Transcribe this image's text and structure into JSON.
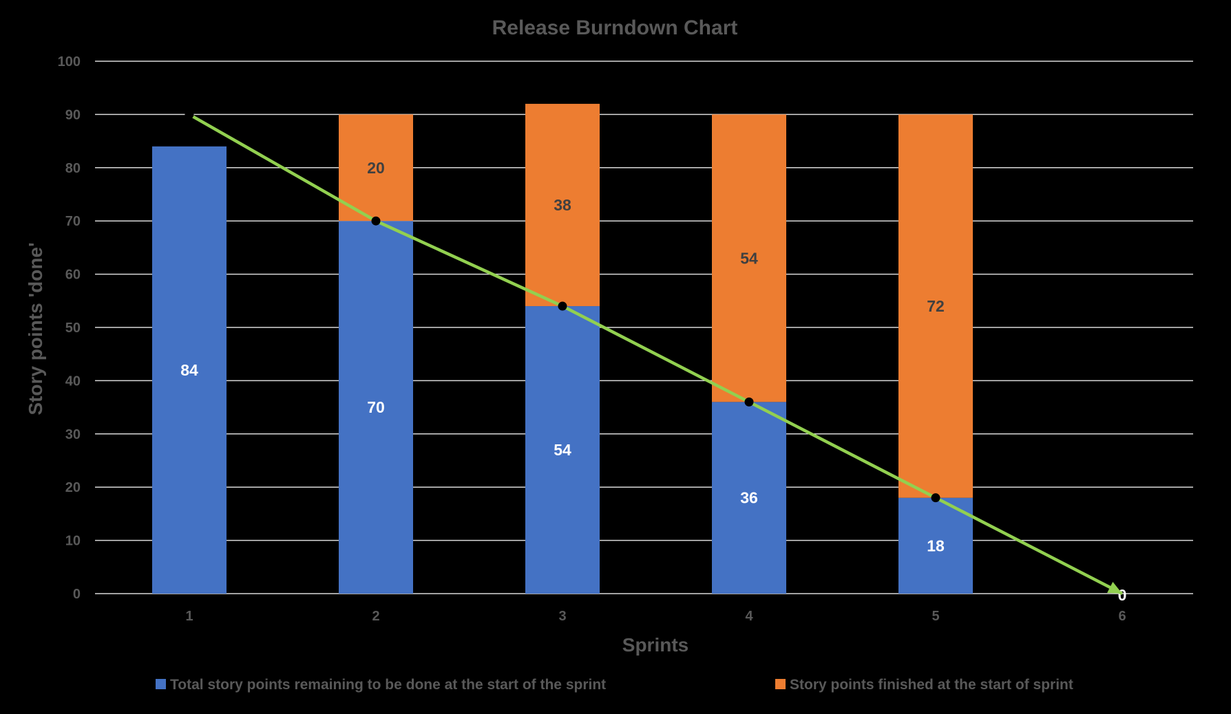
{
  "chart_data": {
    "type": "bar",
    "stacked": true,
    "title": "Release Burndown Chart",
    "xlabel": "Sprints",
    "ylabel": "Story points 'done'",
    "categories": [
      "1",
      "2",
      "3",
      "4",
      "5",
      "6"
    ],
    "ylim": [
      0,
      100
    ],
    "yticks": [
      "0",
      "10",
      "20",
      "30",
      "40",
      "50",
      "60",
      "70",
      "80",
      "90",
      "100"
    ],
    "grid": true,
    "legend_position": "bottom",
    "series": [
      {
        "name": "Total story points remaining to be done at the start of the sprint",
        "color": "#4472C4",
        "values": [
          84,
          70,
          54,
          36,
          18,
          0
        ],
        "labels": [
          "84",
          "70",
          "54",
          "36",
          "18",
          "0"
        ]
      },
      {
        "name": "Story points finished at the start of sprint",
        "color": "#ED7D31",
        "values": [
          0,
          20,
          38,
          54,
          72,
          0
        ],
        "labels": [
          "",
          "20",
          "38",
          "54",
          "72",
          ""
        ]
      }
    ],
    "trend_line": {
      "color": "#92D050",
      "points": [
        [
          1,
          90
        ],
        [
          2,
          70
        ],
        [
          3,
          54
        ],
        [
          4,
          36
        ],
        [
          5,
          18
        ],
        [
          6,
          0
        ]
      ]
    }
  }
}
